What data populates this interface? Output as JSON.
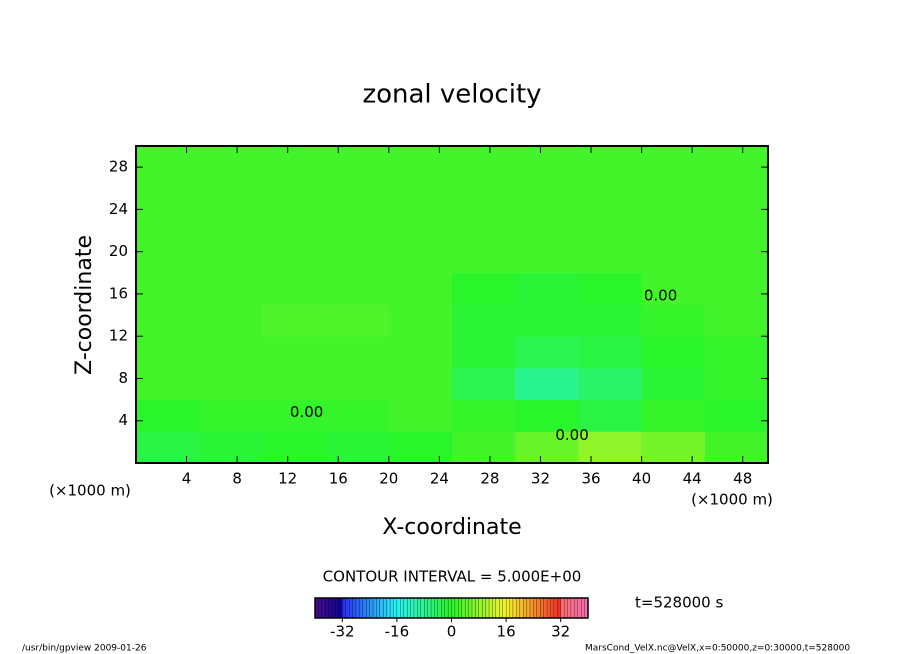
{
  "chart_data": {
    "type": "contour",
    "title": "zonal velocity",
    "x_label": "X-coordinate",
    "y_label": "Z-coordinate",
    "x_unit": "(×1000 m)",
    "y_unit": "(×1000 m)",
    "xlim": [
      0,
      50
    ],
    "xticks": [
      4,
      8,
      12,
      16,
      20,
      24,
      28,
      32,
      36,
      40,
      44,
      48
    ],
    "ylim": [
      0,
      30
    ],
    "yticks": [
      4,
      8,
      12,
      16,
      20,
      24,
      28
    ],
    "x": [
      2.5,
      7.5,
      12.5,
      17.5,
      22.5,
      27.5,
      32.5,
      37.5,
      42.5,
      47.5
    ],
    "y": [
      1.5,
      4.5,
      7.5,
      10.5,
      13.5,
      16.5,
      19.5,
      22.5,
      25.5,
      28.5
    ],
    "values": [
      [
        -2,
        -1,
        0,
        -1,
        0,
        2,
        5,
        8,
        6,
        2
      ],
      [
        0,
        1,
        1,
        1,
        2,
        1,
        0,
        -2,
        1,
        0
      ],
      [
        2,
        2,
        2,
        2,
        2,
        -3,
        -8,
        -5,
        -1,
        1
      ],
      [
        2,
        2,
        2,
        2,
        2,
        -1,
        -3,
        -2,
        0,
        1
      ],
      [
        2,
        2,
        3,
        3,
        2,
        -1,
        -1,
        -1,
        1,
        2
      ],
      [
        2,
        2,
        2,
        2,
        2,
        0,
        -1,
        0,
        2,
        2
      ],
      [
        2,
        2,
        2,
        2,
        2,
        2,
        2,
        2,
        2,
        2
      ],
      [
        2,
        2,
        2,
        2,
        2,
        2,
        2,
        2,
        2,
        2
      ],
      [
        2,
        2,
        2,
        2,
        2,
        2,
        2,
        2,
        2,
        2
      ],
      [
        2,
        2,
        2,
        2,
        2,
        2,
        2,
        2,
        2,
        2
      ]
    ],
    "contour_labels": [
      {
        "text": "0.00",
        "x": 13.5,
        "y": 4.8
      },
      {
        "text": "0.00",
        "x": 34.5,
        "y": 2.6
      },
      {
        "text": "0.00",
        "x": 41.5,
        "y": 15.8
      }
    ],
    "contour_interval": "CONTOUR INTERVAL = 5.000E+00",
    "time_label": "t=528000 s",
    "colorbar": {
      "lim": [
        -40,
        40
      ],
      "ticks": [
        -32,
        -16,
        0,
        16,
        32
      ]
    },
    "footer_left": "/usr/bin/gpview   2009-01-26",
    "footer_right": "MarsCond_VelX.nc@VelX,x=0:50000,z=0:30000,t=528000"
  }
}
